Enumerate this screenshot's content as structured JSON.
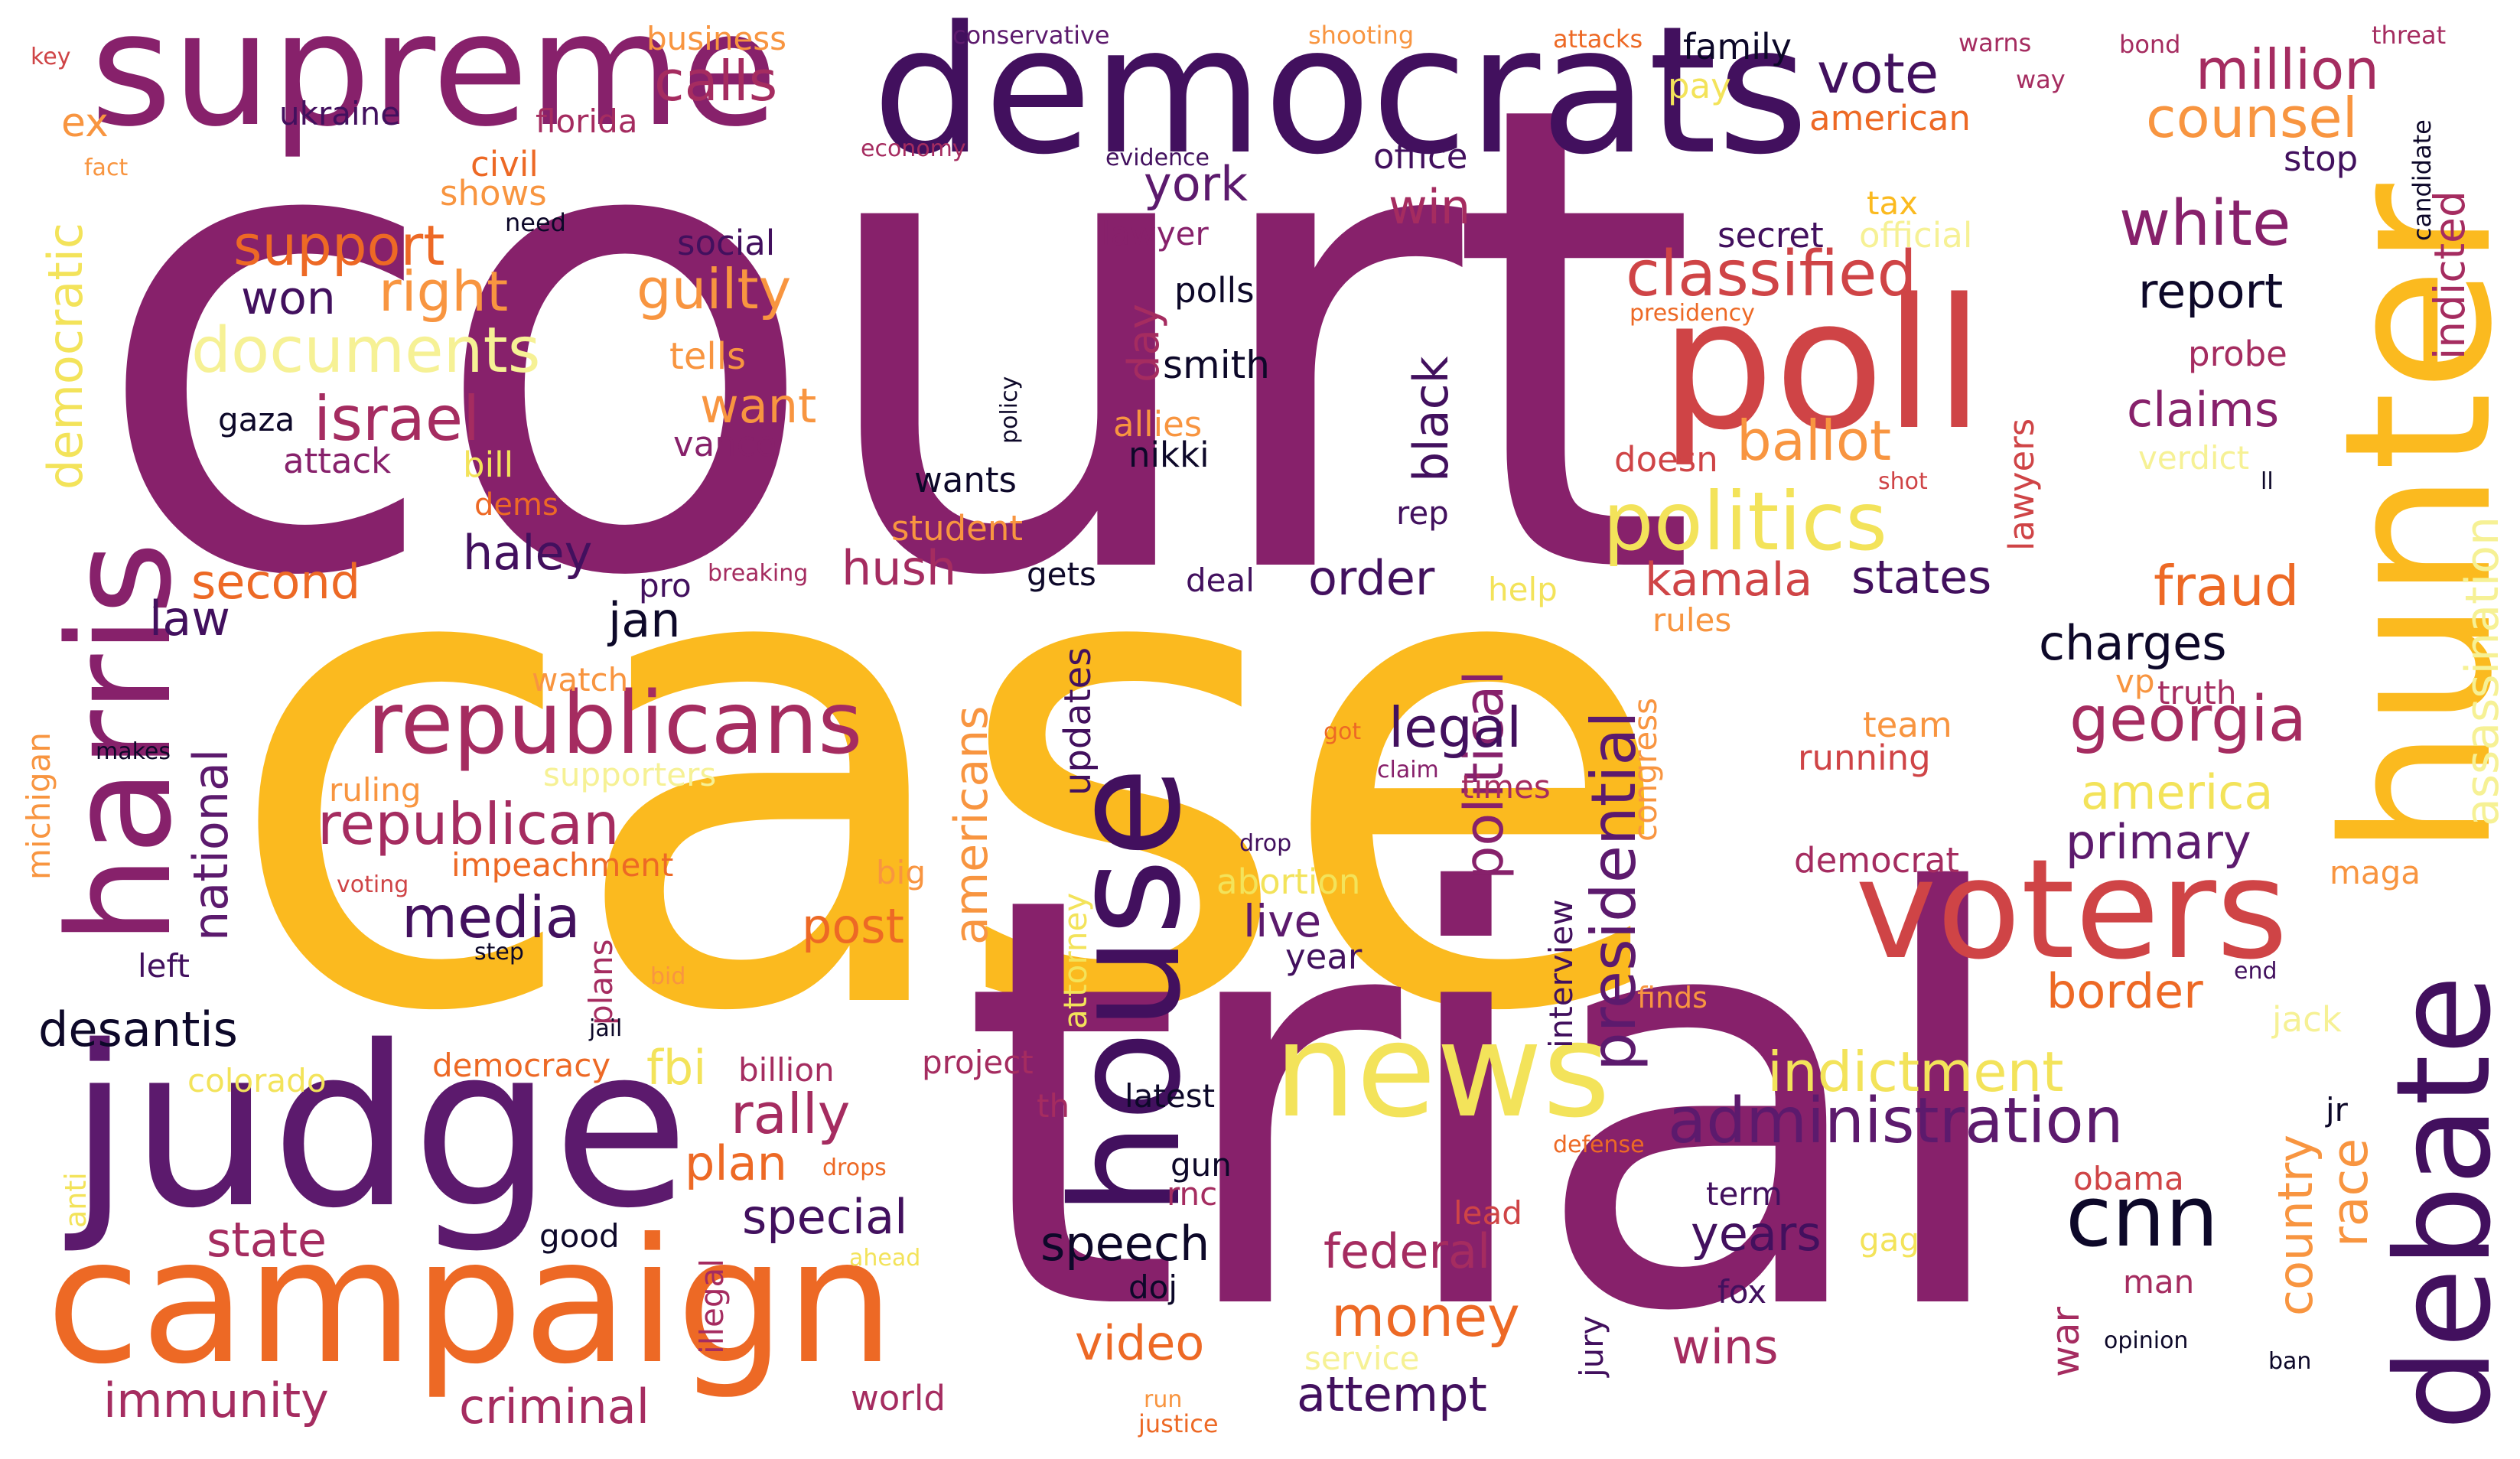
{
  "title": "word cloud",
  "palette": {
    "dark_purple": "#42105e",
    "purple": "#5c1a6d",
    "plum": "#87216b",
    "magenta": "#a52c60",
    "red": "#cf4446",
    "orange": "#ed6925",
    "amber": "#f89540",
    "gold": "#fbba1f",
    "yellow": "#f3e35a",
    "pale_yellow": "#f6f195",
    "near_black": "#0d0829"
  },
  "words": {
    "court": "court",
    "case": "case",
    "trial": "trial",
    "democrats": "democrats",
    "supreme": "supreme",
    "judge": "judge",
    "campaign": "campaign",
    "hunter": "hunter",
    "house": "house",
    "harris": "harris",
    "poll": "poll",
    "voters": "voters",
    "news": "news",
    "debate": "debate",
    "republicans": "republicans",
    "politics": "politics",
    "classified": "classified",
    "white": "white",
    "cnn": "cnn",
    "republican": "republican",
    "administration": "administration",
    "documents": "documents",
    "media": "media",
    "georgia": "georgia",
    "vote": "vote",
    "million": "million",
    "counsel": "counsel",
    "calls": "calls",
    "israel": "israel",
    "guilty": "guilty",
    "support": "support",
    "right": "right",
    "won": "won",
    "presidential": "presidential",
    "political": "political",
    "americans": "americans",
    "assassination": "assassination",
    "indicted": "indicted",
    "indictment": "indictment",
    "ballot": "ballot",
    "fraud": "fraud",
    "claims": "claims",
    "report": "report",
    "charges": "charges",
    "states": "states",
    "kamala": "kamala",
    "order": "order",
    "legal": "legal",
    "haley": "haley",
    "hush": "hush",
    "second": "second",
    "law": "law",
    "jan": "jan",
    "desantis": "desantis",
    "state": "state",
    "special": "special",
    "speech": "speech",
    "federal": "federal",
    "money": "money",
    "years": "years",
    "video": "video",
    "attempt": "attempt",
    "wins": "wins",
    "immunity": "immunity",
    "criminal": "criminal",
    "primary": "primary",
    "border": "border",
    "america": "america",
    "rally": "rally",
    "post": "post",
    "plan": "plan",
    "fbi": "fbi",
    "national": "national",
    "democratic": "democratic",
    "black": "black",
    "york": "york",
    "win": "win",
    "day": "day",
    "want": "want",
    "live": "live",
    "race": "race",
    "country": "country",
    "updates": "updates",
    "ex": "ex",
    "ukraine": "ukraine",
    "florida": "florida",
    "business": "business",
    "conservative": "conservative",
    "shooting": "shooting",
    "attacks": "attacks",
    "family": "family",
    "warns": "warns",
    "way": "way",
    "bond": "bond",
    "threat": "threat",
    "key": "key",
    "fact": "fact",
    "civil": "civil",
    "shows": "shows",
    "need": "need",
    "economy": "economy",
    "evidence": "evidence",
    "office": "office",
    "american": "american",
    "pay": "pay",
    "stop": "stop",
    "candidate": "candidate",
    "social": "social",
    "lawyer": "lawyer",
    "polls": "polls",
    "smith": "smith",
    "tax": "tax",
    "secret": "secret",
    "official": "official",
    "presidency": "presidency",
    "probe": "probe",
    "tells": "tells",
    "gaza": "gaza",
    "vance": "vance",
    "attack": "attack",
    "bill": "bill",
    "dems": "dems",
    "student": "student",
    "allies": "allies",
    "nikki": "nikki",
    "wants": "wants",
    "policy": "policy",
    "doesn": "doesn",
    "lawyers": "lawyers",
    "shot": "shot",
    "verdict": "verdict",
    "ll": "ll",
    "rep": "rep",
    "pro": "pro",
    "breaking": "breaking",
    "gets": "gets",
    "deal": "deal",
    "help": "help",
    "rules": "rules",
    "watch": "watch",
    "michigan": "michigan",
    "makes": "makes",
    "ruling": "ruling",
    "supporters": "supporters",
    "impeachment": "impeachment",
    "got": "got",
    "claim": "claim",
    "times": "times",
    "congress": "congress",
    "team": "team",
    "running": "running",
    "vp": "vp",
    "truth": "truth",
    "democrat": "democrat",
    "maga": "maga",
    "big": "big",
    "voting": "voting",
    "drop": "drop",
    "abortion": "abortion",
    "interview": "interview",
    "plans": "plans",
    "step": "step",
    "left": "left",
    "year": "year",
    "attorney": "attorney",
    "end": "end",
    "bid": "bid",
    "jail": "jail",
    "finds": "finds",
    "jack": "jack",
    "democracy": "democracy",
    "billion": "billion",
    "project": "project",
    "colorado": "colorado",
    "th": "th",
    "latest": "latest",
    "jr": "jr",
    "defense": "defense",
    "drops": "drops",
    "anti": "anti",
    "rnc": "rnc",
    "gun": "gun",
    "lead": "lead",
    "obama": "obama",
    "term": "term",
    "good": "good",
    "illegal": "illegal",
    "gag": "gag",
    "doj": "doj",
    "ahead": "ahead",
    "fox": "fox",
    "man": "man",
    "war": "war",
    "jury": "jury",
    "service": "service",
    "opinion": "opinion",
    "ban": "ban",
    "run": "run",
    "justice": "justice",
    "world": "world"
  }
}
